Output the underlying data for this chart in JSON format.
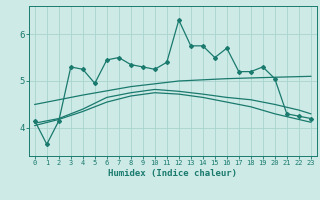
{
  "xlabel": "Humidex (Indice chaleur)",
  "bg_color": "#ceeae6",
  "grid_color": "#a8d4cf",
  "line_color": "#1a7a6e",
  "x_main": [
    0,
    1,
    2,
    3,
    4,
    5,
    6,
    7,
    8,
    9,
    10,
    11,
    12,
    13,
    14,
    15,
    16,
    17,
    18,
    19,
    20,
    21,
    22,
    23
  ],
  "y_main": [
    4.15,
    3.65,
    4.15,
    5.3,
    5.25,
    4.95,
    5.45,
    5.5,
    5.35,
    5.3,
    5.25,
    5.4,
    6.3,
    5.75,
    5.75,
    5.5,
    5.7,
    5.2,
    5.2,
    5.3,
    5.05,
    4.3,
    4.25,
    4.2
  ],
  "trend1_x": [
    0,
    2,
    4,
    6,
    8,
    10,
    12,
    14,
    16,
    18,
    20,
    22,
    23
  ],
  "trend1_y": [
    4.1,
    4.2,
    4.4,
    4.65,
    4.75,
    4.82,
    4.78,
    4.72,
    4.65,
    4.6,
    4.5,
    4.38,
    4.3
  ],
  "trend2_x": [
    0,
    2,
    4,
    6,
    8,
    10,
    12,
    14,
    16,
    18,
    20,
    22,
    23
  ],
  "trend2_y": [
    4.05,
    4.18,
    4.35,
    4.55,
    4.68,
    4.75,
    4.72,
    4.65,
    4.55,
    4.45,
    4.3,
    4.18,
    4.12
  ],
  "trend3_x": [
    0,
    4,
    8,
    12,
    16,
    20,
    23
  ],
  "trend3_y": [
    4.5,
    4.7,
    4.88,
    5.0,
    5.05,
    5.08,
    5.1
  ],
  "ylim": [
    3.4,
    6.6
  ],
  "xlim": [
    -0.5,
    23.5
  ],
  "yticks": [
    4,
    5,
    6
  ],
  "xticks": [
    0,
    1,
    2,
    3,
    4,
    5,
    6,
    7,
    8,
    9,
    10,
    11,
    12,
    13,
    14,
    15,
    16,
    17,
    18,
    19,
    20,
    21,
    22,
    23
  ]
}
